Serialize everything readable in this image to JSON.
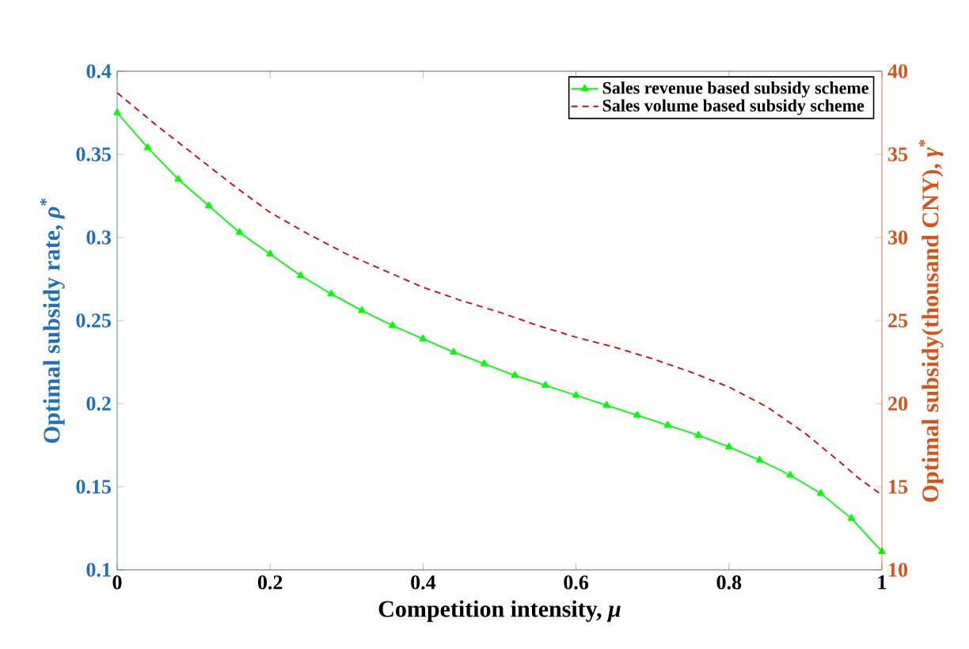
{
  "chart_data": {
    "type": "line",
    "xlabel": "Competition intensity, *μ*",
    "ylabel": "Optimal subsidy rate, *ρ*$^{*}$",
    "y2label": "Optimal subsidy(thousand CNY), *γ*$^{*}$",
    "xlim": [
      0,
      1
    ],
    "xticks": [
      0,
      0.2,
      0.4,
      0.6,
      0.8,
      1
    ],
    "ylim": [
      0.1,
      0.4
    ],
    "yticks": [
      0.1,
      0.15,
      0.2,
      0.25,
      0.3,
      0.35,
      0.4
    ],
    "y2lim": [
      10,
      40
    ],
    "y2ticks": [
      10,
      15,
      20,
      25,
      30,
      35,
      40
    ],
    "legend": "top right",
    "grid": false,
    "series": [
      {
        "name": "Sales revenue based subsidy scheme",
        "color": "#00ff00",
        "marker": "triangle",
        "line_style": "solid",
        "x": [
          0,
          0.04,
          0.08,
          0.12,
          0.16,
          0.2,
          0.24,
          0.28,
          0.32,
          0.36,
          0.4,
          0.44,
          0.48,
          0.52,
          0.56,
          0.6,
          0.64,
          0.68,
          0.72,
          0.76,
          0.8,
          0.84,
          0.88,
          0.92,
          0.96,
          1
        ],
        "values": [
          0.375,
          0.354,
          0.335,
          0.319,
          0.303,
          0.29,
          0.277,
          0.266,
          0.256,
          0.247,
          0.239,
          0.231,
          0.224,
          0.217,
          0.211,
          0.205,
          0.199,
          0.193,
          0.187,
          0.181,
          0.174,
          0.166,
          0.157,
          0.146,
          0.131,
          0.111
        ]
      },
      {
        "name": "Sales volume based subsidy scheme",
        "color": "#e00000",
        "marker": "none",
        "line_style": "dashed",
        "axis": "y2",
        "x": [
          0,
          0.05,
          0.1,
          0.15,
          0.2,
          0.25,
          0.3,
          0.35,
          0.4,
          0.45,
          0.5,
          0.55,
          0.6,
          0.65,
          0.7,
          0.75,
          0.8,
          0.85,
          0.9,
          0.95,
          0.97,
          1
        ],
        "values": [
          38.7,
          36.8,
          35.0,
          33.2,
          31.5,
          30.2,
          29.0,
          28.0,
          27.0,
          26.2,
          25.5,
          24.7,
          24.0,
          23.4,
          22.7,
          21.9,
          21.0,
          19.8,
          18.2,
          16.3,
          15.5,
          14.5
        ]
      }
    ]
  }
}
